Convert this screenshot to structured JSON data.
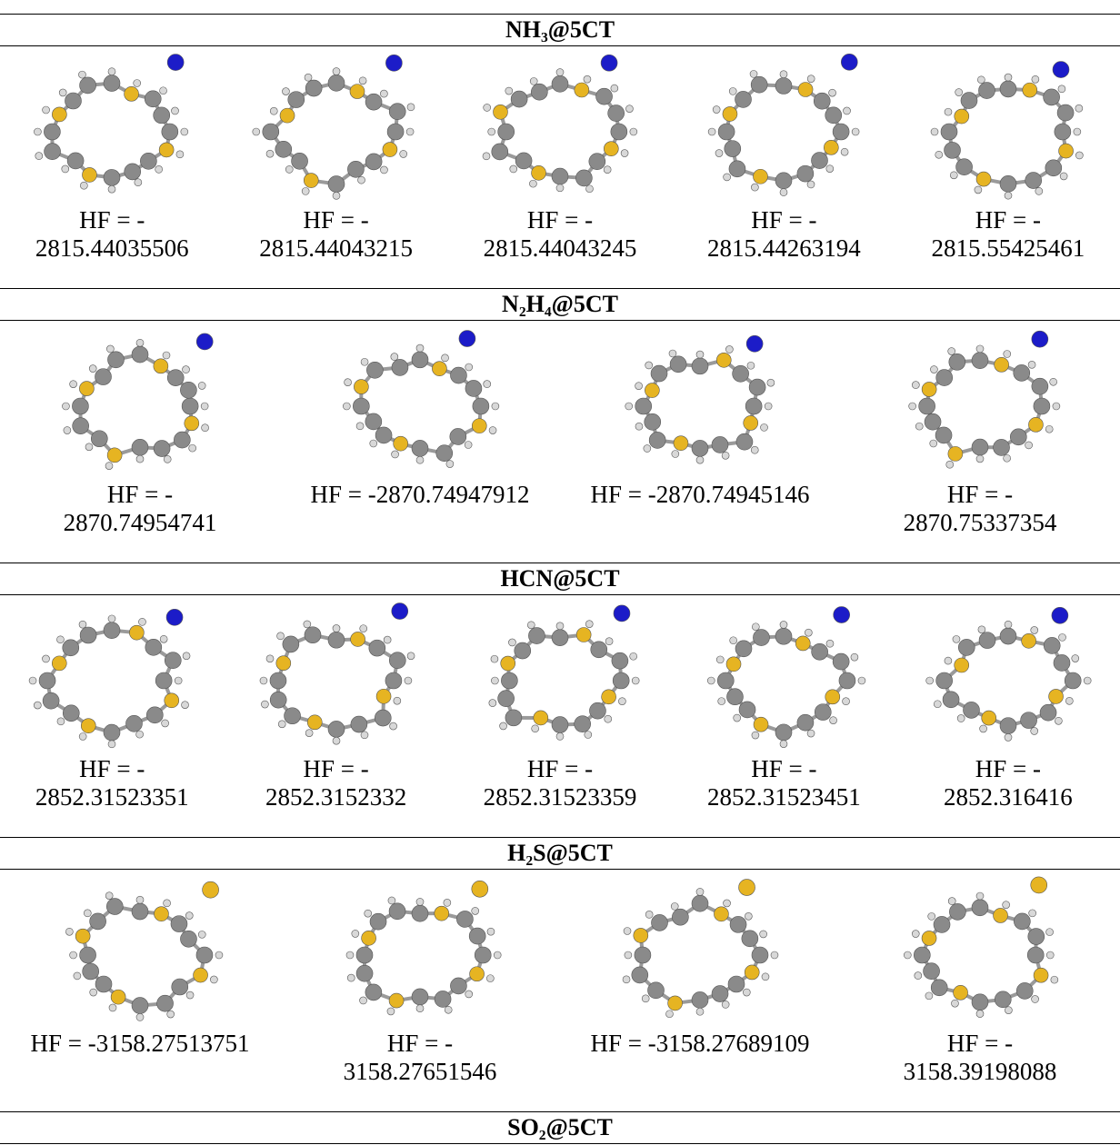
{
  "sections": [
    {
      "title": "NH₃@5CT",
      "cells": [
        {
          "lines": [
            "HF = -",
            "2815.44035506"
          ]
        },
        {
          "lines": [
            "HF = -",
            "2815.44043215"
          ]
        },
        {
          "lines": [
            "HF = -",
            "2815.44043245"
          ]
        },
        {
          "lines": [
            "HF = -",
            "2815.44263194"
          ]
        },
        {
          "lines": [
            "HF = -",
            "2815.55425461"
          ]
        }
      ]
    },
    {
      "title": "N₂H₄@5CT",
      "cells": [
        {
          "lines": [
            "HF = -",
            "2870.74954741"
          ]
        },
        {
          "lines": [
            "HF = -2870.74947912"
          ]
        },
        {
          "lines": [
            "HF = -2870.74945146"
          ]
        },
        {
          "lines": [
            "HF = -",
            "2870.75337354"
          ]
        }
      ]
    },
    {
      "title": "HCN@5CT",
      "cells": [
        {
          "lines": [
            "HF = -",
            "2852.31523351"
          ]
        },
        {
          "lines": [
            "HF = -",
            "2852.3152332"
          ]
        },
        {
          "lines": [
            "HF = -",
            "2852.31523359"
          ]
        },
        {
          "lines": [
            "HF = -",
            "2852.31523451"
          ]
        },
        {
          "lines": [
            "HF = -",
            "2852.316416"
          ]
        }
      ]
    },
    {
      "title": "H₂S@5CT",
      "cells": [
        {
          "lines": [
            "HF = -3158.27513751"
          ]
        },
        {
          "lines": [
            "HF = -",
            "3158.27651546"
          ]
        },
        {
          "lines": [
            "HF = -3158.27689109"
          ]
        },
        {
          "lines": [
            "HF = -",
            "3158.39198088"
          ]
        }
      ]
    },
    {
      "title": "SO₂@5CT"
    }
  ]
}
